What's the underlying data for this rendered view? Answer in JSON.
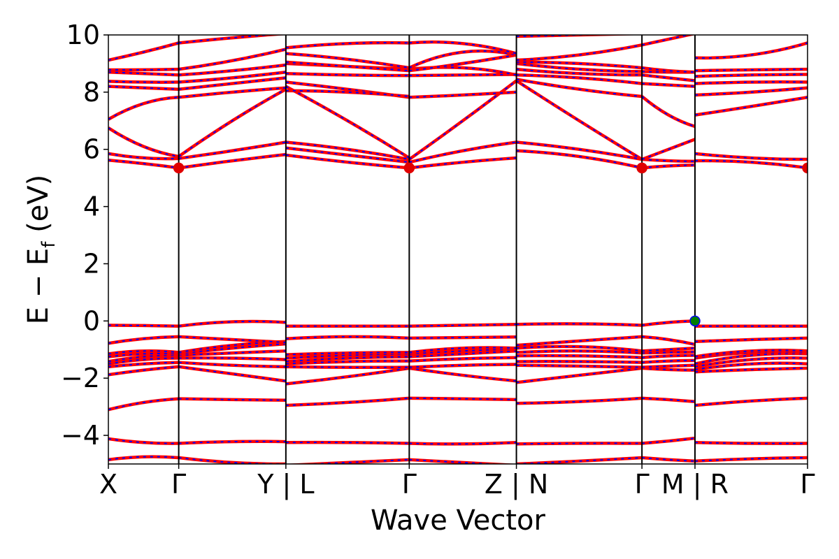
{
  "chart_data": {
    "type": "line",
    "xlabel": "Wave Vector",
    "ylabel": "E − E_f (eV)",
    "ylabel_parts": {
      "main": "E − E",
      "sub": "f",
      "unit": " (eV)"
    },
    "ylim": [
      -5,
      10
    ],
    "yticks": [
      10,
      8,
      6,
      4,
      2,
      0,
      -2,
      -4
    ],
    "ytick_labels": [
      "10",
      "8",
      "6",
      "4",
      "2",
      "0",
      "−2",
      "−4"
    ],
    "xlim": [
      0,
      6.46
    ],
    "kpoints": [
      {
        "label": "X",
        "x": 0.0
      },
      {
        "label": "Γ",
        "x": 0.65
      },
      {
        "label": "Y | L",
        "x": 1.64
      },
      {
        "label": "Γ",
        "x": 2.78
      },
      {
        "label": "Z | N",
        "x": 3.77
      },
      {
        "label": "Γ",
        "x": 4.93
      },
      {
        "label": "M | R",
        "x": 5.42
      },
      {
        "label": "Γ",
        "x": 6.46
      }
    ],
    "segments": [
      {
        "from": 0.0,
        "to": 0.65
      },
      {
        "from": 0.65,
        "to": 1.64
      },
      {
        "from": 1.64,
        "to": 2.78
      },
      {
        "from": 2.78,
        "to": 3.77
      },
      {
        "from": 3.77,
        "to": 4.93
      },
      {
        "from": 4.93,
        "to": 5.42
      },
      {
        "from": 5.42,
        "to": 6.46
      }
    ],
    "grid": false,
    "colors": {
      "band_primary": "#ff0000",
      "band_overlay": "#0000ff",
      "cbm_marker": "#e00000",
      "vbm_marker": "#007f00"
    },
    "series": [
      {
        "segment": 0,
        "bands": [
          [
            -4.85,
            -4.75,
            -4.78
          ],
          [
            -4.12,
            -4.25,
            -4.28
          ],
          [
            -3.1,
            -2.85,
            -2.72
          ],
          [
            -1.88,
            -1.72,
            -1.6
          ],
          [
            -1.6,
            -1.5,
            -1.45
          ],
          [
            -1.5,
            -1.35,
            -1.3
          ],
          [
            -1.42,
            -1.25,
            -1.2
          ],
          [
            -1.25,
            -1.15,
            -1.15
          ],
          [
            -1.15,
            -1.05,
            -1.1
          ],
          [
            -0.78,
            -0.62,
            -0.55
          ],
          [
            -0.15,
            -0.16,
            -0.18
          ],
          [
            5.62,
            5.5,
            5.35
          ],
          [
            5.85,
            5.7,
            5.68
          ],
          [
            6.75,
            6.1,
            5.75
          ],
          [
            7.05,
            7.6,
            7.82
          ],
          [
            8.2,
            8.15,
            8.1
          ],
          [
            8.38,
            8.35,
            8.35
          ],
          [
            8.7,
            8.65,
            8.6
          ],
          [
            8.78,
            8.78,
            8.8
          ],
          [
            9.12,
            9.4,
            9.72
          ]
        ]
      },
      {
        "segment": 1,
        "bands": [
          [
            -4.78,
            -4.95,
            -5.0
          ],
          [
            -4.28,
            -4.22,
            -4.22
          ],
          [
            -2.72,
            -2.75,
            -2.77
          ],
          [
            -1.6,
            -1.85,
            -2.1
          ],
          [
            -1.45,
            -1.55,
            -1.6
          ],
          [
            -1.3,
            -1.3,
            -1.35
          ],
          [
            -1.2,
            -1.12,
            -1.05
          ],
          [
            -1.15,
            -0.95,
            -0.8
          ],
          [
            -1.1,
            -0.85,
            -0.72
          ],
          [
            -0.55,
            -0.65,
            -0.75
          ],
          [
            -0.18,
            -0.03,
            -0.05
          ],
          [
            5.35,
            5.6,
            5.82
          ],
          [
            5.68,
            5.95,
            6.25
          ],
          [
            5.75,
            7.0,
            8.1
          ],
          [
            7.82,
            8.0,
            8.15
          ],
          [
            8.1,
            8.3,
            8.5
          ],
          [
            8.35,
            8.5,
            8.7
          ],
          [
            8.6,
            8.75,
            8.95
          ],
          [
            8.8,
            9.1,
            9.5
          ],
          [
            9.72,
            9.9,
            10.05
          ]
        ]
      },
      {
        "segment": 2,
        "bands": [
          [
            -5.05,
            -4.95,
            -4.85
          ],
          [
            -4.25,
            -4.25,
            -4.28
          ],
          [
            -2.95,
            -2.85,
            -2.7
          ],
          [
            -2.2,
            -1.95,
            -1.65
          ],
          [
            -1.6,
            -1.62,
            -1.62
          ],
          [
            -1.5,
            -1.42,
            -1.4
          ],
          [
            -1.42,
            -1.3,
            -1.25
          ],
          [
            -1.3,
            -1.2,
            -1.15
          ],
          [
            -1.18,
            -1.12,
            -1.1
          ],
          [
            -0.62,
            -0.55,
            -0.6
          ],
          [
            -0.18,
            -0.18,
            -0.18
          ],
          [
            5.8,
            5.55,
            5.35
          ],
          [
            6.05,
            5.8,
            5.55
          ],
          [
            6.25,
            6.0,
            5.65
          ],
          [
            8.2,
            7.0,
            5.7
          ],
          [
            8.35,
            8.1,
            7.82
          ],
          [
            8.05,
            8.0,
            7.85
          ],
          [
            8.65,
            8.6,
            8.58
          ],
          [
            9.0,
            8.9,
            8.8
          ],
          [
            9.05,
            8.9,
            8.75
          ],
          [
            9.35,
            9.15,
            8.85
          ],
          [
            9.55,
            9.7,
            9.72
          ]
        ]
      },
      {
        "segment": 3,
        "bands": [
          [
            -4.85,
            -4.95,
            -5.05
          ],
          [
            -4.28,
            -4.3,
            -4.25
          ],
          [
            -2.7,
            -2.72,
            -2.75
          ],
          [
            -1.65,
            -1.9,
            -2.1
          ],
          [
            -1.62,
            -1.55,
            -1.52
          ],
          [
            -1.4,
            -1.32,
            -1.28
          ],
          [
            -1.25,
            -1.15,
            -1.05
          ],
          [
            -1.15,
            -1.05,
            -0.98
          ],
          [
            -1.1,
            -0.95,
            -0.95
          ],
          [
            -0.6,
            -0.58,
            -0.56
          ],
          [
            -0.18,
            -0.15,
            -0.12
          ],
          [
            5.35,
            5.55,
            5.7
          ],
          [
            5.55,
            5.95,
            6.25
          ],
          [
            5.65,
            7.0,
            8.4
          ],
          [
            7.82,
            7.9,
            8.0
          ],
          [
            8.58,
            8.6,
            8.62
          ],
          [
            8.8,
            8.85,
            8.6
          ],
          [
            8.75,
            9.0,
            9.3
          ],
          [
            8.85,
            9.4,
            9.3
          ],
          [
            9.72,
            9.7,
            9.35
          ]
        ]
      },
      {
        "segment": 4,
        "bands": [
          [
            -5.0,
            -4.9,
            -4.78
          ],
          [
            -4.3,
            -4.28,
            -4.28
          ],
          [
            -2.88,
            -2.82,
            -2.7
          ],
          [
            -2.15,
            -1.9,
            -1.65
          ],
          [
            -1.55,
            -1.58,
            -1.62
          ],
          [
            -1.42,
            -1.42,
            -1.45
          ],
          [
            -1.22,
            -1.22,
            -1.28
          ],
          [
            -1.1,
            -1.05,
            -1.12
          ],
          [
            -0.95,
            -0.9,
            -1.05
          ],
          [
            -0.85,
            -0.7,
            -0.55
          ],
          [
            -0.12,
            -0.1,
            -0.15
          ],
          [
            5.95,
            5.75,
            5.35
          ],
          [
            6.25,
            6.0,
            5.65
          ],
          [
            8.4,
            7.0,
            5.65
          ],
          [
            8.45,
            8.1,
            7.85
          ],
          [
            8.6,
            8.5,
            8.3
          ],
          [
            8.8,
            8.65,
            8.6
          ],
          [
            9.0,
            8.8,
            8.72
          ],
          [
            9.05,
            9.0,
            8.85
          ],
          [
            9.12,
            9.3,
            9.65
          ],
          [
            9.95,
            10.0,
            10.05
          ]
        ]
      },
      {
        "segment": 5,
        "bands": [
          [
            -4.78,
            -4.85,
            -4.9
          ],
          [
            -4.28,
            -4.2,
            -4.1
          ],
          [
            -2.7,
            -2.75,
            -2.82
          ],
          [
            -1.65,
            -1.7,
            -1.72
          ],
          [
            -1.62,
            -1.58,
            -1.55
          ],
          [
            -1.45,
            -1.4,
            -1.38
          ],
          [
            -1.28,
            -1.22,
            -1.2
          ],
          [
            -1.12,
            -1.1,
            -1.08
          ],
          [
            -1.05,
            -1.0,
            -0.95
          ],
          [
            -0.55,
            -0.65,
            -0.82
          ],
          [
            -0.15,
            -0.05,
            0.0
          ],
          [
            5.35,
            5.42,
            5.45
          ],
          [
            5.65,
            5.6,
            5.58
          ],
          [
            5.65,
            6.0,
            6.35
          ],
          [
            7.85,
            7.2,
            6.8
          ],
          [
            8.3,
            8.25,
            8.2
          ],
          [
            8.6,
            8.5,
            8.4
          ],
          [
            8.72,
            8.7,
            8.7
          ],
          [
            8.85,
            8.75,
            8.7
          ],
          [
            9.65,
            9.85,
            10.05
          ]
        ]
      },
      {
        "segment": 6,
        "bands": [
          [
            -4.9,
            -4.82,
            -4.78
          ],
          [
            -4.25,
            -4.28,
            -4.28
          ],
          [
            -2.95,
            -2.8,
            -2.7
          ],
          [
            -1.78,
            -1.7,
            -1.65
          ],
          [
            -1.7,
            -1.5,
            -1.5
          ],
          [
            -1.6,
            -1.35,
            -1.3
          ],
          [
            -1.5,
            -1.2,
            -1.15
          ],
          [
            -1.3,
            -1.1,
            -1.1
          ],
          [
            -1.25,
            -1.05,
            -1.05
          ],
          [
            -0.72,
            -0.65,
            -0.6
          ],
          [
            -0.18,
            -0.18,
            -0.18
          ],
          [
            5.6,
            5.55,
            5.35
          ],
          [
            5.85,
            5.7,
            5.65
          ],
          [
            7.2,
            7.5,
            7.82
          ],
          [
            7.9,
            8.0,
            8.15
          ],
          [
            8.3,
            8.35,
            8.35
          ],
          [
            8.55,
            8.6,
            8.62
          ],
          [
            8.75,
            8.78,
            8.8
          ],
          [
            9.2,
            9.3,
            9.72
          ]
        ]
      }
    ],
    "markers": [
      {
        "x": 0.65,
        "y": 5.35,
        "kind": "cbm"
      },
      {
        "x": 2.78,
        "y": 5.35,
        "kind": "cbm"
      },
      {
        "x": 4.93,
        "y": 5.35,
        "kind": "cbm"
      },
      {
        "x": 6.46,
        "y": 5.35,
        "kind": "cbm"
      },
      {
        "x": 5.42,
        "y": 0.0,
        "kind": "vbm"
      }
    ]
  }
}
